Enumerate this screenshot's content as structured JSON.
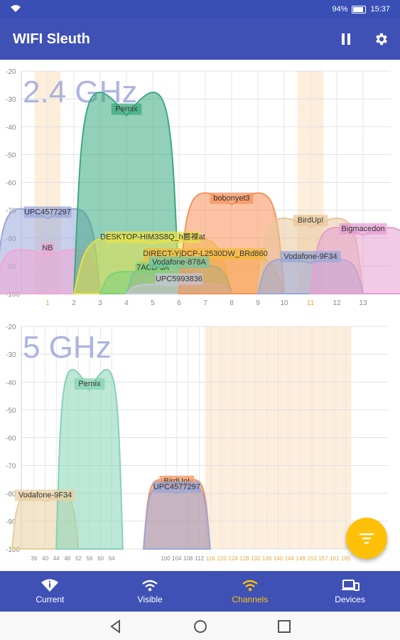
{
  "status_bar": {
    "battery": "94%",
    "time": "15:37",
    "wifi_icon": "wifi-icon"
  },
  "app_bar": {
    "title": "WIFI Sleuth",
    "actions": [
      "pause-icon",
      "settings-icon"
    ]
  },
  "band24": {
    "band_label": "2.4 GHz",
    "y_ticks": [
      "-20",
      "-30",
      "-40",
      "-50",
      "-60",
      "-70",
      "-80",
      "-90",
      "-100"
    ],
    "channels": [
      "1",
      "2",
      "3",
      "4",
      "5",
      "6",
      "7",
      "8",
      "9",
      "10",
      "11",
      "12",
      "13"
    ],
    "highlight_channels": [
      "1",
      "11"
    ],
    "networks": [
      {
        "name": "UPC4577297",
        "center": 1,
        "width": 2,
        "level": -73,
        "color": "#9aa7d8"
      },
      {
        "name": "NB",
        "center": 1,
        "width": 2,
        "level": -86,
        "color": "#f0a6d6"
      },
      {
        "name": "Pernix",
        "center": 4,
        "width": 2,
        "level": -36,
        "color": "#3aa980"
      },
      {
        "name": "DESKTOP-HIM3S8Q_h覈裸at",
        "center": 5,
        "width": 3,
        "level": -82,
        "color": "#e8e14a"
      },
      {
        "name": "7ACD-JA",
        "center": 5,
        "width": 2,
        "level": -93,
        "color": "#7ed17a"
      },
      {
        "name": "DIRECT-YjDCP-L2530DW_BRd860",
        "center": 7,
        "width": 3,
        "level": -88,
        "color": "#f5ba3c"
      },
      {
        "name": "Vodafone-878A",
        "center": 6,
        "width": 2,
        "level": -91,
        "color": "#6fc7a6"
      },
      {
        "name": "UPC5993836",
        "center": 6,
        "width": 2,
        "level": -97,
        "color": "#c5c5d8"
      },
      {
        "name": "bobonyet3",
        "center": 8,
        "width": 2,
        "level": -68,
        "color": "#f7925a"
      },
      {
        "name": "BirdUp!",
        "center": 11,
        "width": 2,
        "level": -76,
        "color": "#e8c79a"
      },
      {
        "name": "Vodafone-9F34",
        "center": 11,
        "width": 2,
        "level": -89,
        "color": "#9aa7d8"
      },
      {
        "name": "Bigmacedon",
        "center": 13,
        "width": 2,
        "level": -79,
        "color": "#e59ed1"
      }
    ]
  },
  "band5": {
    "band_label": "5 GHz",
    "y_ticks": [
      "-20",
      "-30",
      "-40",
      "-50",
      "-60",
      "-70",
      "-80",
      "-90",
      "-100"
    ],
    "channels": [
      "36",
      "40",
      "44",
      "48",
      "52",
      "56",
      "60",
      "64",
      "100",
      "104",
      "108",
      "112",
      "116",
      "120",
      "124",
      "128",
      "132",
      "136",
      "140",
      "144",
      "149",
      "153",
      "157",
      "161",
      "165"
    ],
    "highlight_channels": [
      "116",
      "120",
      "124",
      "128",
      "132",
      "136",
      "140",
      "144",
      "149",
      "153",
      "157",
      "161",
      "165"
    ],
    "networks": [
      {
        "name": "Vodafone-9F34",
        "center": "40",
        "span": 3,
        "level": -83,
        "color": "#e8cfa1"
      },
      {
        "name": "Pernix",
        "center": "56",
        "span": 3,
        "level": -43,
        "color": "#86d3b4"
      },
      {
        "name": "BirdUp!",
        "center": "104",
        "span": 3,
        "level": -78,
        "color": "#f7925a"
      },
      {
        "name": "UPC4577297",
        "center": "104",
        "span": 3,
        "level": -80,
        "color": "#9aa7d8"
      }
    ]
  },
  "fab": {
    "icon": "sort-icon"
  },
  "bottom_nav": [
    {
      "label": "Current",
      "icon": "wifi-info-icon",
      "active": false
    },
    {
      "label": "Visible",
      "icon": "wifi-icon",
      "active": false
    },
    {
      "label": "Channels",
      "icon": "channels-wifi-icon",
      "active": true
    },
    {
      "label": "Devices",
      "icon": "devices-icon",
      "active": false
    }
  ],
  "system_nav": [
    "back-icon",
    "home-icon",
    "recents-icon"
  ]
}
